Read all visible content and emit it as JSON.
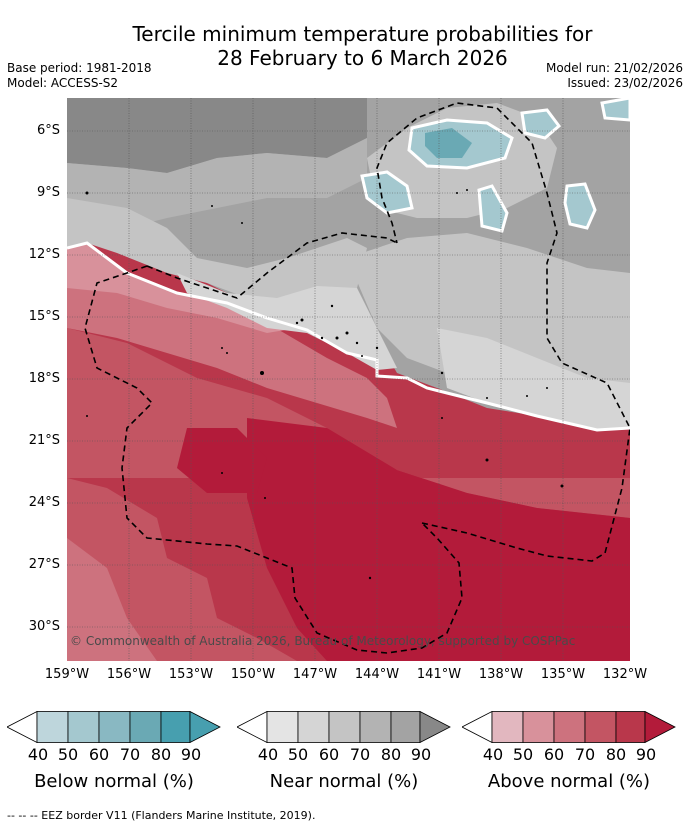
{
  "title": {
    "line1": "Tercile minimum temperature probabilities for",
    "line2": "28 February to 6 March 2026"
  },
  "meta": {
    "base_period": "Base period: 1981-2018",
    "model": "Model: ACCESS-S2",
    "model_run": "Model run: 21/02/2026",
    "issued": "Issued: 23/02/2026"
  },
  "map": {
    "copyright": "© Commonwealth of Australia 2026, Bureau of Meteorology, supported by COSPPac",
    "lat_ticks": [
      "6°S",
      "9°S",
      "12°S",
      "15°S",
      "18°S",
      "21°S",
      "24°S",
      "27°S",
      "30°S"
    ],
    "lon_ticks": [
      "159°W",
      "156°W",
      "153°W",
      "150°W",
      "147°W",
      "144°W",
      "141°W",
      "138°W",
      "135°W",
      "132°W"
    ],
    "colors": {
      "below": [
        "#ffffff",
        "#bed6dc",
        "#a4c8cf",
        "#89b8c2",
        "#6aa9b4",
        "#479faf"
      ],
      "near": [
        "#ffffff",
        "#e4e4e4",
        "#d5d5d5",
        "#c4c4c4",
        "#b3b3b3",
        "#a3a3a3",
        "#888888"
      ],
      "above": [
        "#ffffff",
        "#e2b7bf",
        "#d8919b",
        "#cd727e",
        "#c35563",
        "#b9374b",
        "#b31b3a"
      ]
    }
  },
  "colorbars": [
    {
      "ticks": [
        "40",
        "50",
        "60",
        "70",
        "80",
        "90"
      ],
      "label": "Below normal (%)"
    },
    {
      "ticks": [
        "40",
        "50",
        "60",
        "70",
        "80",
        "90"
      ],
      "label": "Near normal (%)"
    },
    {
      "ticks": [
        "40",
        "50",
        "60",
        "70",
        "80",
        "90"
      ],
      "label": "Above normal (%)"
    }
  ],
  "footer": "--  --  -- EEZ border V11 (Flanders Marine Institute, 2019)."
}
